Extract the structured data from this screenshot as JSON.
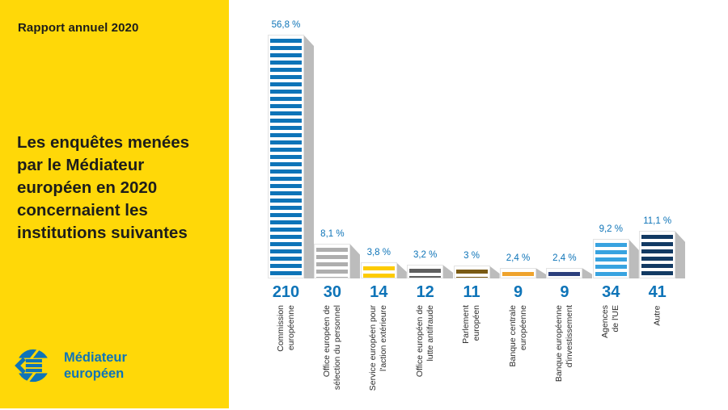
{
  "panel": {
    "report_label": "Rapport annuel 2020",
    "title": "Les enquêtes menées\npar le Médiateur\neuropéen en 2020\nconcernaient les\ninstitutions suivantes",
    "logo_text": "Médiateur\neuropéen"
  },
  "colors": {
    "panel_yellow": "#ffd808",
    "accent_blue": "#0e74b8",
    "shadow_gray": "#bcbcbc"
  },
  "chart_data": {
    "type": "bar",
    "title": "Les enquêtes menées par le Médiateur européen en 2020 concernaient les institutions suivantes",
    "categories": [
      "Commission\neuropéenne",
      "Office européen de\nsélection du personnel",
      "Service européen pour\nl'action extérieure",
      "Office européen de\nlutte antifraude",
      "Parlement\neuropéen",
      "Banque centrale\neuropéenne",
      "Banque européenne\nd'investissement",
      "Agences\nde l'UE",
      "Autre"
    ],
    "values": [
      210,
      30,
      14,
      12,
      11,
      9,
      9,
      34,
      41
    ],
    "percents": [
      56.8,
      8.1,
      3.8,
      3.2,
      3,
      2.4,
      2.4,
      9.2,
      11.1
    ],
    "percent_labels": [
      "56,8 %",
      "8,1 %",
      "3,8 %",
      "3,2 %",
      "3 %",
      "2,4 %",
      "2,4 %",
      "9,2 %",
      "11,1 %"
    ],
    "bar_colors": [
      "#0e74b8",
      "#aeaeae",
      "#fdcb00",
      "#5f5f5f",
      "#7a5a13",
      "#efa32d",
      "#2b3f7c",
      "#38a3e0",
      "#123a63"
    ],
    "xlabel": "",
    "ylabel": "",
    "gridlines": false,
    "legend": null,
    "bar_style": "horizontal-striped with 3d gray shadow"
  }
}
